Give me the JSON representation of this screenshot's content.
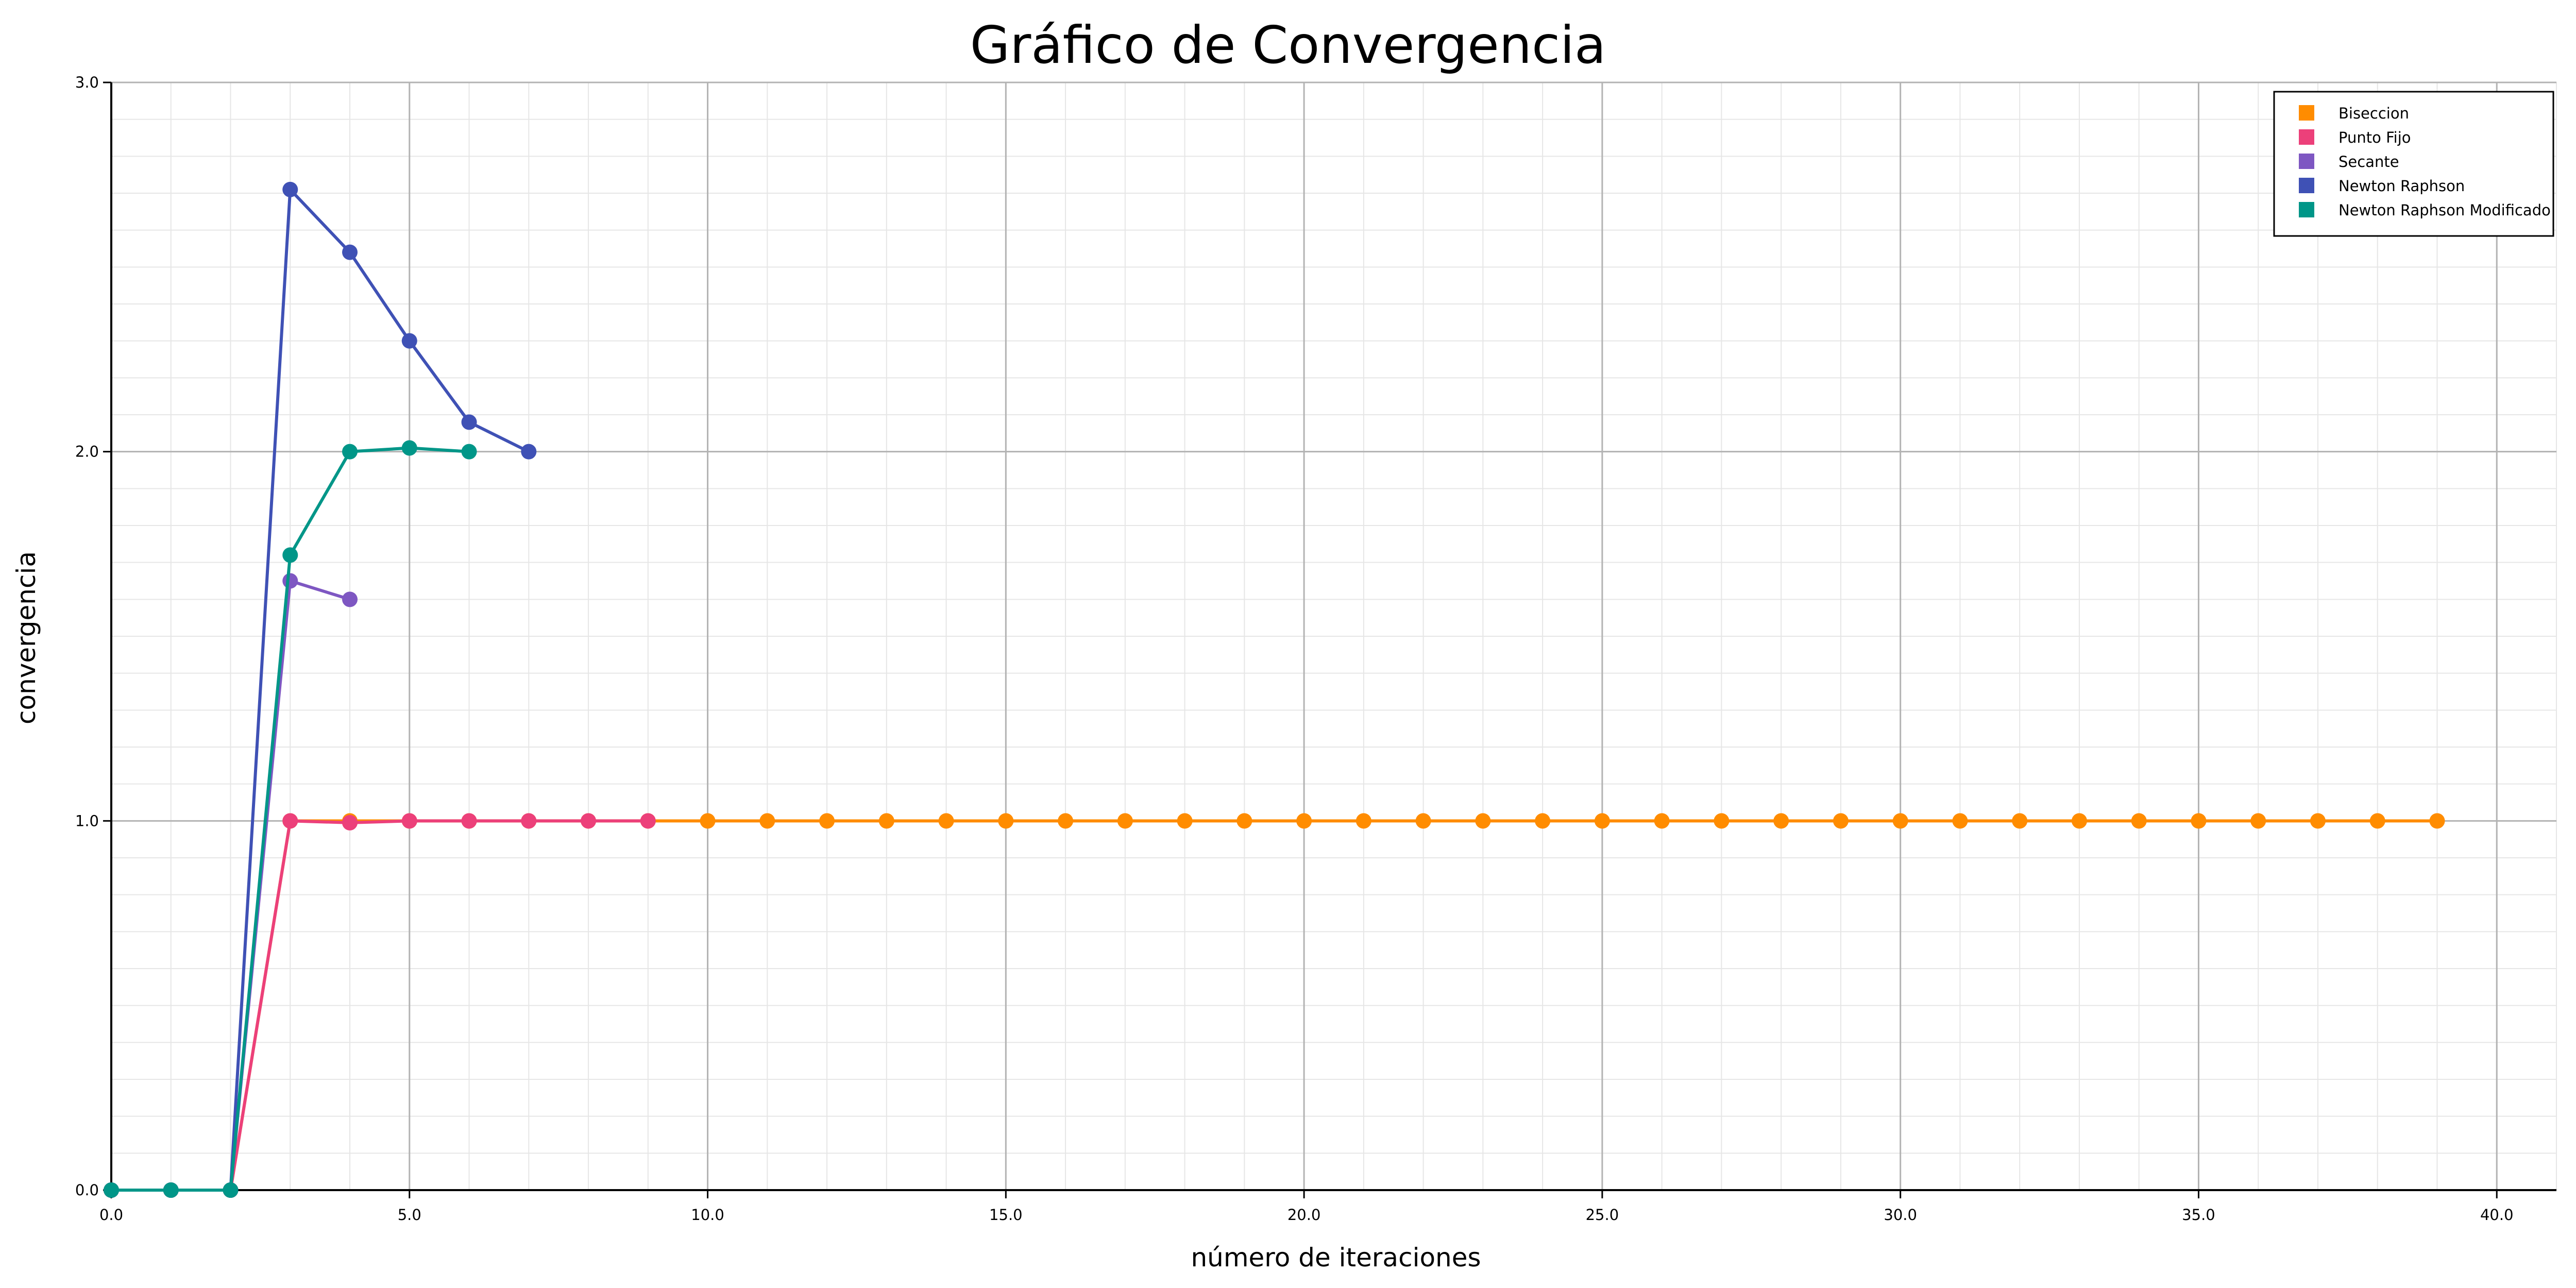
{
  "chart_data": {
    "type": "line",
    "title": "Gráfico de Convergencia",
    "xlabel": "número de iteraciones",
    "ylabel": "convergencia",
    "xlim": [
      0,
      41
    ],
    "ylim": [
      0,
      3
    ],
    "x_ticks": [
      0,
      5,
      10,
      15,
      20,
      25,
      30,
      35,
      40
    ],
    "x_tick_labels": [
      "0.0",
      "5.0",
      "10.0",
      "15.0",
      "20.0",
      "25.0",
      "30.0",
      "35.0",
      "40.0"
    ],
    "y_ticks": [
      0,
      1,
      2,
      3
    ],
    "y_tick_labels": [
      "0.0",
      "1.0",
      "2.0",
      "3.0"
    ],
    "grid": true,
    "legend_position": "top-right",
    "series": [
      {
        "name": "Biseccion",
        "color": "#FF8C00",
        "x": [
          0,
          1,
          2,
          3,
          4,
          5,
          6,
          7,
          8,
          9,
          10,
          11,
          12,
          13,
          14,
          15,
          16,
          17,
          18,
          19,
          20,
          21,
          22,
          23,
          24,
          25,
          26,
          27,
          28,
          29,
          30,
          31,
          32,
          33,
          34,
          35,
          36,
          37,
          38,
          39
        ],
        "y": [
          0,
          0,
          0,
          1,
          1,
          1,
          1,
          1,
          1,
          1,
          1,
          1,
          1,
          1,
          1,
          1,
          1,
          1,
          1,
          1,
          1,
          1,
          1,
          1,
          1,
          1,
          1,
          1,
          1,
          1,
          1,
          1,
          1,
          1,
          1,
          1,
          1,
          1,
          1,
          1
        ]
      },
      {
        "name": "Punto Fijo",
        "color": "#EC407A",
        "x": [
          0,
          1,
          2,
          3,
          4,
          5,
          6,
          7,
          8,
          9
        ],
        "y": [
          0,
          0,
          0,
          1.0,
          0.995,
          1.0,
          1.0,
          1.0,
          1.0,
          1.0
        ]
      },
      {
        "name": "Secante",
        "color": "#7E57C2",
        "x": [
          0,
          1,
          2,
          3,
          4
        ],
        "y": [
          0,
          0,
          0,
          1.65,
          1.6
        ]
      },
      {
        "name": "Newton Raphson",
        "color": "#3F51B5",
        "x": [
          0,
          1,
          2,
          3,
          4,
          5,
          6,
          7
        ],
        "y": [
          0,
          0,
          0,
          2.71,
          2.54,
          2.3,
          2.08,
          2.0
        ]
      },
      {
        "name": "Newton Raphson Modificado",
        "color": "#009688",
        "x": [
          0,
          1,
          2,
          3,
          4,
          5,
          6
        ],
        "y": [
          0,
          0,
          0,
          1.72,
          2.0,
          2.01,
          2.0
        ]
      }
    ]
  }
}
